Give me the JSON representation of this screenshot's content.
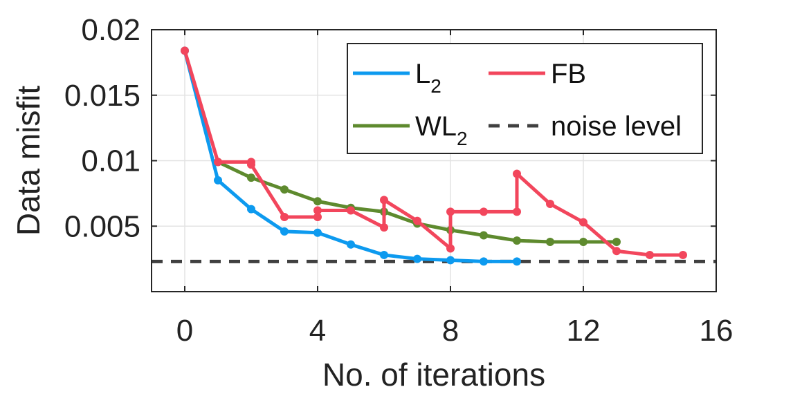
{
  "chart_data": {
    "type": "line",
    "title": "",
    "xlabel": "No. of iterations",
    "ylabel": "Data misfit",
    "xlim": [
      -1,
      16
    ],
    "ylim": [
      0,
      0.02
    ],
    "xticks": [
      0,
      4,
      8,
      12,
      16
    ],
    "xtick_labels": [
      "0",
      "4",
      "8",
      "12",
      "16"
    ],
    "yticks": [
      0.005,
      0.01,
      0.015,
      0.02
    ],
    "ytick_labels": [
      "0.005",
      "0.01",
      "0.015",
      "0.02"
    ],
    "grid": true,
    "legend_placement": "top-right",
    "series": [
      {
        "name": "L",
        "name_subscript": "2",
        "color": "#0d9aef",
        "x": [
          0,
          1,
          2,
          3,
          4,
          5,
          6,
          7,
          8,
          9,
          10
        ],
        "y": [
          0.0184,
          0.0085,
          0.0063,
          0.0046,
          0.0045,
          0.0036,
          0.0028,
          0.0025,
          0.0024,
          0.0023,
          0.0023
        ]
      },
      {
        "name": "FB",
        "name_subscript": "",
        "color": "#f2465c",
        "x": [
          0,
          1,
          2,
          2,
          3,
          4,
          4,
          5,
          6,
          6,
          7,
          8,
          8,
          9,
          10,
          10,
          11,
          12,
          13,
          14,
          15
        ],
        "y": [
          0.0184,
          0.0099,
          0.0099,
          0.0097,
          0.0057,
          0.0057,
          0.0062,
          0.0062,
          0.0049,
          0.007,
          0.0054,
          0.0033,
          0.0061,
          0.0061,
          0.0061,
          0.009,
          0.0067,
          0.0053,
          0.0031,
          0.0028,
          0.0028
        ]
      },
      {
        "name": "WL",
        "name_subscript": "2",
        "color": "#5e8a2e",
        "x": [
          1,
          2,
          3,
          4,
          5,
          6,
          7,
          8,
          9,
          10,
          11,
          12,
          13
        ],
        "y": [
          0.0099,
          0.0087,
          0.0078,
          0.0069,
          0.0064,
          0.0061,
          0.0052,
          0.0047,
          0.0043,
          0.0039,
          0.0038,
          0.0038,
          0.0038
        ]
      },
      {
        "name": "noise level",
        "name_subscript": "",
        "color": "#404040",
        "style": "dashed",
        "y_constant": 0.0023
      }
    ]
  }
}
